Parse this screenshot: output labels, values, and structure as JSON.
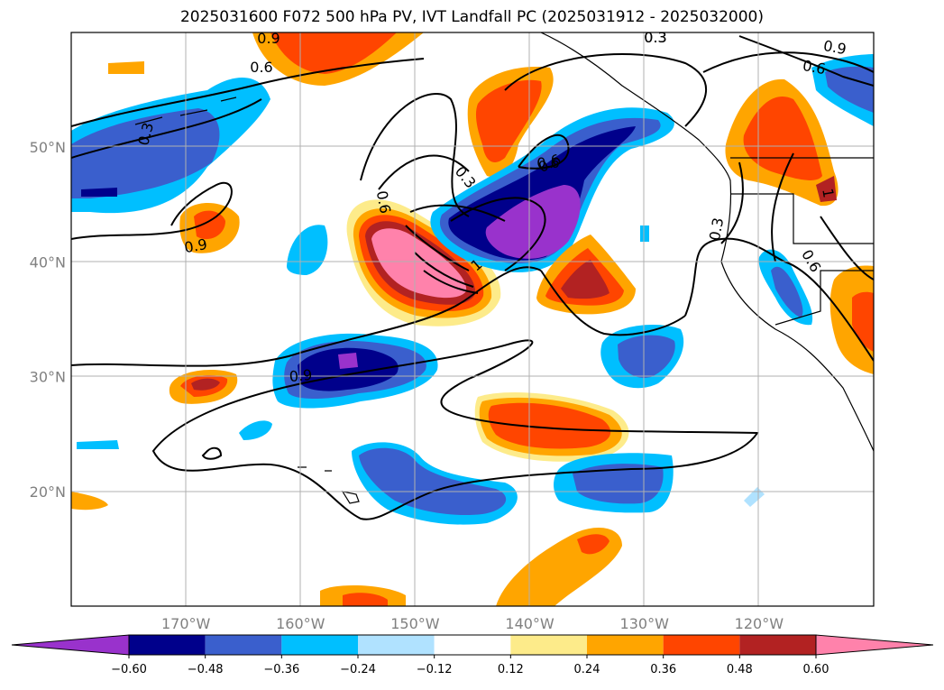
{
  "title": "2025031600 F072 500 hPa PV, IVT Landfall PC (2025031912 - 2025032000)",
  "map": {
    "projection": "PlateCarree",
    "extent": {
      "lon": [
        -180,
        -110
      ],
      "lat": [
        10,
        60
      ]
    },
    "gridlines": true,
    "lat_ticks": [
      {
        "lat": 50,
        "label": "50°N"
      },
      {
        "lat": 40,
        "label": "40°N"
      },
      {
        "lat": 30,
        "label": "30°N"
      },
      {
        "lat": 20,
        "label": "20°N"
      }
    ],
    "lon_ticks": [
      {
        "lon": -170,
        "label": "170°W"
      },
      {
        "lon": -160,
        "label": "160°W"
      },
      {
        "lon": -150,
        "label": "150°W"
      },
      {
        "lon": -140,
        "label": "140°W"
      },
      {
        "lon": -130,
        "label": "130°W"
      },
      {
        "lon": -120,
        "label": "120°W"
      }
    ],
    "contour_labels": [
      "0.9",
      "0.6",
      "0.3",
      "0.9",
      "0.6",
      "0.3",
      "0.9",
      "0.6",
      "0.3",
      "0.6",
      "0.9",
      "1",
      "0.6",
      "0.3",
      "0.6",
      "1",
      "0.3"
    ]
  },
  "colorbar": {
    "extend": "both",
    "levels": [
      "-0.60",
      "-0.48",
      "-0.36",
      "-0.24",
      "-0.12",
      "0.12",
      "0.24",
      "0.36",
      "0.48",
      "0.60"
    ],
    "colors": [
      "#9932cc",
      "#00008b",
      "#3a5fcd",
      "#00bfff",
      "#b0e2ff",
      "#ffffff",
      "#fdeb8a",
      "#ffa500",
      "#ff4500",
      "#b22222",
      "#ff82ab"
    ]
  },
  "colors": {
    "neg_060": "#9932cc",
    "neg_048": "#00008b",
    "neg_036": "#3a5fcd",
    "neg_024": "#00bfff",
    "neg_012": "#b0e2ff",
    "pos_012": "#fdeb8a",
    "pos_024": "#ffa500",
    "pos_036": "#ff4500",
    "pos_048": "#b22222",
    "pos_060": "#ff82ab"
  }
}
